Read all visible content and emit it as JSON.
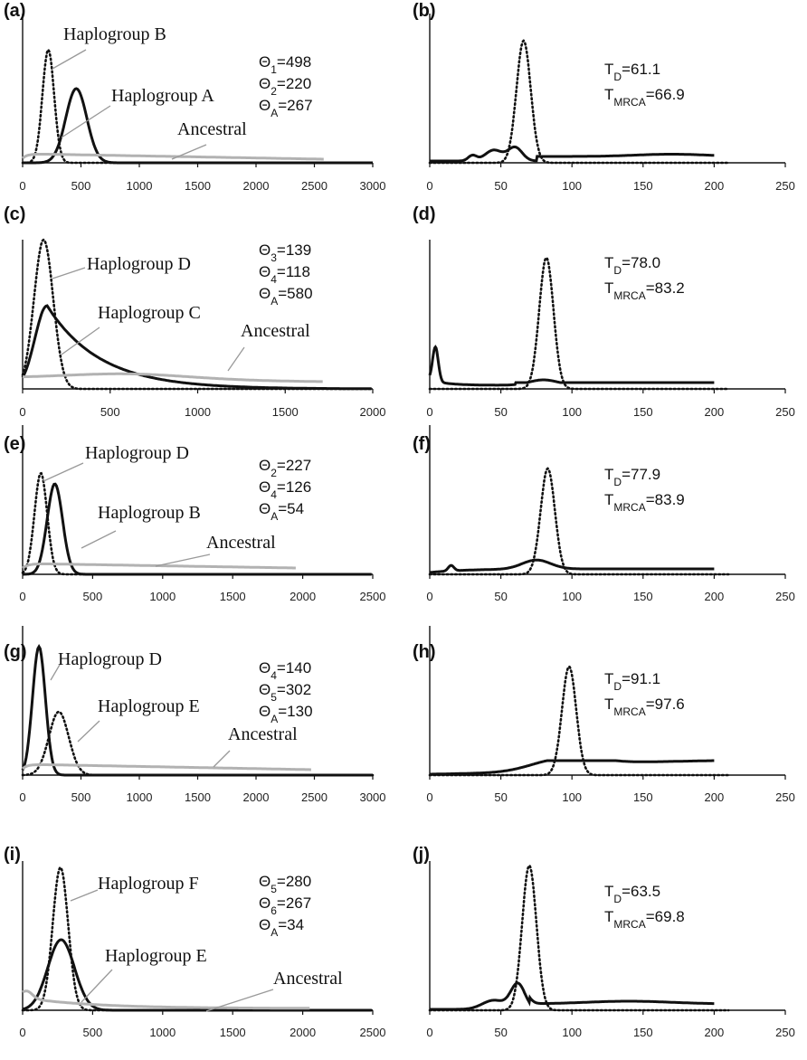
{
  "chart_data": [
    {
      "type": "line",
      "panel": "(a)",
      "xlim": [
        0,
        3000
      ],
      "ticks": [
        "0",
        "500",
        "1000",
        "1500",
        "2000",
        "2500",
        "3000"
      ],
      "series": [
        {
          "name": "Haplogroup B",
          "style": "dotted",
          "peak": 220,
          "sigma": 50,
          "amp": 125
        },
        {
          "name": "Haplogroup A",
          "style": "solid",
          "peak": 460,
          "sigma": 90,
          "amp": 82
        },
        {
          "name": "Ancestral",
          "style": "gray",
          "flat": true,
          "start": 10,
          "end": 4,
          "xmax": 2580
        }
      ],
      "stats": [
        {
          "sym": "Θ",
          "sub": "1",
          "val": "=498"
        },
        {
          "sym": "Θ",
          "sub": "2",
          "val": "=220"
        },
        {
          "sym": "Θ",
          "sub": "A",
          "val": "=267"
        }
      ]
    },
    {
      "type": "line",
      "panel": "(b)",
      "xlim": [
        0,
        250
      ],
      "ticks": [
        "0",
        "50",
        "100",
        "150",
        "200",
        "250"
      ],
      "series": [
        {
          "name": "",
          "style": "dotted",
          "peak": 66,
          "sigma": 5,
          "amp": 135
        },
        {
          "name": "",
          "style": "solid",
          "shape": "b"
        }
      ],
      "stats": [
        {
          "sym": "T",
          "sub": "D",
          "val": "=61.1"
        },
        {
          "sym": "T",
          "sub": "MRCA",
          "val": "=66.9"
        }
      ]
    },
    {
      "type": "line",
      "panel": "(c)",
      "xlim": [
        0,
        2000
      ],
      "ticks": [
        "0",
        "500",
        "1000",
        "1500",
        "2000"
      ],
      "series": [
        {
          "name": "Haplogroup D",
          "style": "dotted",
          "peak": 120,
          "sigma": 55,
          "amp": 165
        },
        {
          "name": "Haplogroup C",
          "style": "solid",
          "shape": "skew",
          "peak": 140,
          "amp": 92,
          "rise": 70,
          "fall": 300
        },
        {
          "name": "Ancestral",
          "style": "gray",
          "shape": "bump",
          "xmax": 1720
        }
      ],
      "stats": [
        {
          "sym": "Θ",
          "sub": "3",
          "val": "=139"
        },
        {
          "sym": "Θ",
          "sub": "4",
          "val": "=118"
        },
        {
          "sym": "Θ",
          "sub": "A",
          "val": "=580"
        }
      ]
    },
    {
      "type": "line",
      "panel": "(d)",
      "xlim": [
        0,
        250
      ],
      "ticks": [
        "0",
        "50",
        "100",
        "150",
        "200",
        "250"
      ],
      "series": [
        {
          "name": "",
          "style": "dotted",
          "peak": 82,
          "sigma": 5,
          "amp": 145
        },
        {
          "name": "",
          "style": "solid",
          "shape": "d"
        }
      ],
      "stats": [
        {
          "sym": "T",
          "sub": "D",
          "val": "=78.0"
        },
        {
          "sym": "T",
          "sub": "MRCA",
          "val": "=83.2"
        }
      ]
    },
    {
      "type": "line",
      "panel": "(e)",
      "xlim": [
        0,
        2500
      ],
      "ticks": [
        "0",
        "500",
        "1000",
        "1500",
        "2000",
        "2500"
      ],
      "series": [
        {
          "name": "Haplogroup D",
          "style": "dotted",
          "peak": 130,
          "sigma": 45,
          "amp": 112
        },
        {
          "name": "Haplogroup B",
          "style": "solid",
          "peak": 230,
          "sigma": 55,
          "amp": 100
        },
        {
          "name": "Ancestral",
          "style": "gray",
          "flat": true,
          "start": 12,
          "end": 7,
          "xmax": 1950
        }
      ],
      "stats": [
        {
          "sym": "Θ",
          "sub": "2",
          "val": "=227"
        },
        {
          "sym": "Θ",
          "sub": "4",
          "val": "=126"
        },
        {
          "sym": "Θ",
          "sub": "A",
          "val": "=54"
        }
      ]
    },
    {
      "type": "line",
      "panel": "(f)",
      "xlim": [
        0,
        250
      ],
      "ticks": [
        "0",
        "50",
        "100",
        "150",
        "200",
        "250"
      ],
      "series": [
        {
          "name": "",
          "style": "dotted",
          "peak": 83,
          "sigma": 5,
          "amp": 117
        },
        {
          "name": "",
          "style": "solid",
          "shape": "f"
        }
      ],
      "stats": [
        {
          "sym": "T",
          "sub": "D",
          "val": "=77.9"
        },
        {
          "sym": "T",
          "sub": "MRCA",
          "val": "=83.9"
        }
      ]
    },
    {
      "type": "line",
      "panel": "(g)",
      "xlim": [
        0,
        3000
      ],
      "ticks": [
        "0",
        "500",
        "1000",
        "1500",
        "2000",
        "2500",
        "3000"
      ],
      "series": [
        {
          "name": "Haplogroup D",
          "style": "solid",
          "peak": 140,
          "sigma": 55,
          "amp": 142
        },
        {
          "name": "Haplogroup E",
          "style": "dotted",
          "peak": 310,
          "sigma": 85,
          "amp": 70
        },
        {
          "name": "Ancestral",
          "style": "gray",
          "flat": true,
          "start": 12,
          "end": 6,
          "xmax": 2480
        }
      ],
      "stats": [
        {
          "sym": "Θ",
          "sub": "4",
          "val": "=140"
        },
        {
          "sym": "Θ",
          "sub": "5",
          "val": "=302"
        },
        {
          "sym": "Θ",
          "sub": "A",
          "val": "=130"
        }
      ]
    },
    {
      "type": "line",
      "panel": "(h)",
      "xlim": [
        0,
        250
      ],
      "ticks": [
        "0",
        "50",
        "100",
        "150",
        "200",
        "250"
      ],
      "series": [
        {
          "name": "",
          "style": "dotted",
          "peak": 98,
          "sigma": 5,
          "amp": 120
        },
        {
          "name": "",
          "style": "solid",
          "shape": "h"
        }
      ],
      "stats": [
        {
          "sym": "T",
          "sub": "D",
          "val": "=91.1"
        },
        {
          "sym": "T",
          "sub": "MRCA",
          "val": "=97.6"
        }
      ]
    },
    {
      "type": "line",
      "panel": "(i)",
      "xlim": [
        0,
        2500
      ],
      "ticks": [
        "0",
        "500",
        "1000",
        "1500",
        "2000",
        "2500"
      ],
      "series": [
        {
          "name": "Haplogroup F",
          "style": "dotted",
          "peak": 270,
          "sigma": 55,
          "amp": 158
        },
        {
          "name": "Haplogroup E",
          "style": "solid",
          "peak": 275,
          "sigma": 95,
          "amp": 78
        },
        {
          "name": "Ancestral",
          "style": "gray",
          "shape": "i",
          "xmax": 2050
        }
      ],
      "stats": [
        {
          "sym": "Θ",
          "sub": "5",
          "val": "=280"
        },
        {
          "sym": "Θ",
          "sub": "6",
          "val": "=267"
        },
        {
          "sym": "Θ",
          "sub": "A",
          "val": "=34"
        }
      ]
    },
    {
      "type": "line",
      "panel": "(j)",
      "xlim": [
        0,
        250
      ],
      "ticks": [
        "0",
        "50",
        "100",
        "150",
        "200",
        "250"
      ],
      "series": [
        {
          "name": "",
          "style": "dotted",
          "peak": 70,
          "sigma": 5,
          "amp": 160
        },
        {
          "name": "",
          "style": "solid",
          "shape": "j"
        }
      ],
      "stats": [
        {
          "sym": "T",
          "sub": "D",
          "val": "=63.5"
        },
        {
          "sym": "T",
          "sub": "MRCA",
          "val": "=69.8"
        }
      ]
    }
  ]
}
